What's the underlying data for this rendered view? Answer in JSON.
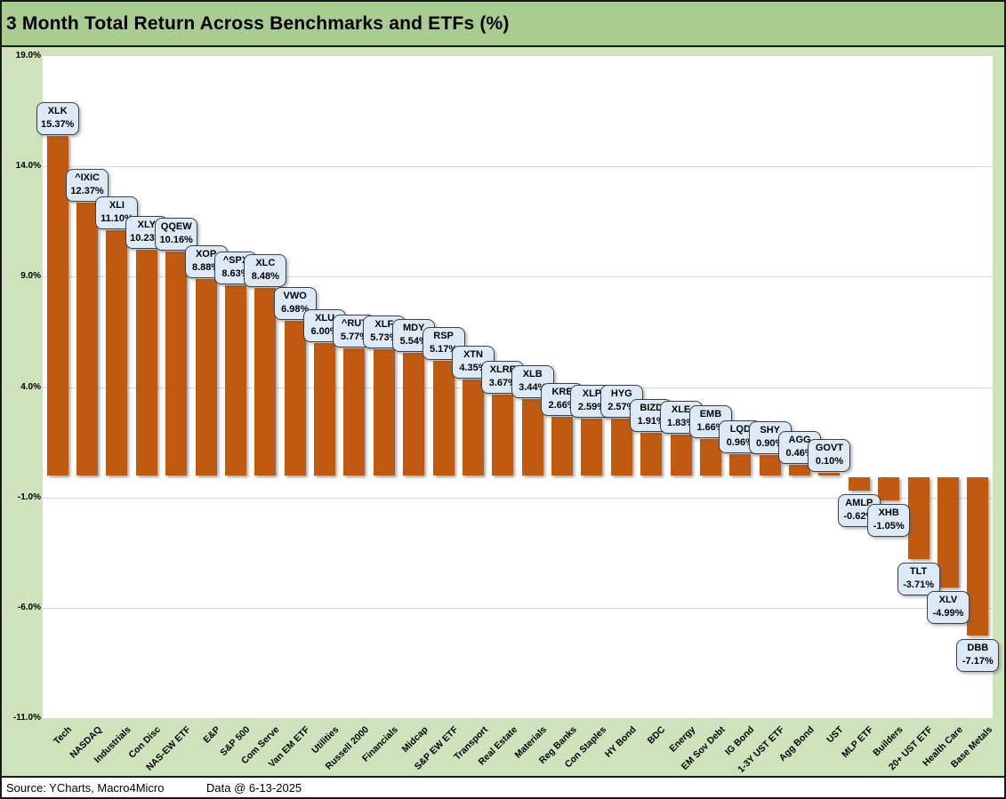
{
  "title": "3 Month Total Return Across Benchmarks and ETFs (%)",
  "footer": {
    "source": "Source: YCharts, Macro4Micro",
    "data_date": "Data @ 6-13-2025"
  },
  "colors": {
    "figure_background": "#CEE2BC",
    "title_background": "#A9CD90",
    "plot_background": "#FFFFFF",
    "bar": "#C05A11",
    "callout_fill": "#DCE9F6",
    "callout_border": "#3F3F3F",
    "gridline": "#D9D9D9"
  },
  "chart_data": {
    "type": "bar",
    "title": "3 Month Total Return Across Benchmarks and ETFs (%)",
    "xlabel": "",
    "ylabel": "",
    "ylim": [
      -11.0,
      19.0
    ],
    "ytick_step": 5.0,
    "ytick_labels": [
      "19.0%",
      "14.0%",
      "9.0%",
      "4.0%",
      "-1.0%",
      "-6.0%",
      "-11.0%"
    ],
    "grid": true,
    "legend": "none",
    "value_suffix": "%",
    "categories": [
      "Tech",
      "NASDAQ",
      "Industrials",
      "Con Disc",
      "NAS-EW ETF",
      "E&P",
      "S&P 500",
      "Com Serve",
      "Van EM ETF",
      "Utilities",
      "Russell 2000",
      "Financials",
      "Midcap",
      "S&P EW ETF",
      "Transport",
      "Real Estate",
      "Materials",
      "Reg Banks",
      "Con Staples",
      "HY Bond",
      "BDC",
      "Energy",
      "EM Sov Debt",
      "IG Bond",
      "1-3Y UST ETF",
      "Agg Bond",
      "UST",
      "MLP ETF",
      "Builders",
      "20+ UST ETF",
      "Health Care",
      "Base Metals"
    ],
    "tickers": [
      "XLK",
      "^IXIC",
      "XLI",
      "XLY",
      "QQEW",
      "XOP",
      "^SPX",
      "XLC",
      "VWO",
      "XLU",
      "^RUT",
      "XLF",
      "MDY",
      "RSP",
      "XTN",
      "XLRE",
      "XLB",
      "KRE",
      "XLP",
      "HYG",
      "BIZD",
      "XLE",
      "EMB",
      "LQD",
      "SHY",
      "AGG",
      "GOVT",
      "AMLP",
      "XHB",
      "TLT",
      "XLV",
      "DBB"
    ],
    "values": [
      15.37,
      12.37,
      11.1,
      10.23,
      10.16,
      8.88,
      8.63,
      8.48,
      6.98,
      6.0,
      5.77,
      5.73,
      5.54,
      5.17,
      4.35,
      3.67,
      3.44,
      2.66,
      2.59,
      2.57,
      1.91,
      1.83,
      1.66,
      0.96,
      0.9,
      0.46,
      0.1,
      -0.62,
      -1.05,
      -3.71,
      -4.99,
      -7.17
    ]
  }
}
